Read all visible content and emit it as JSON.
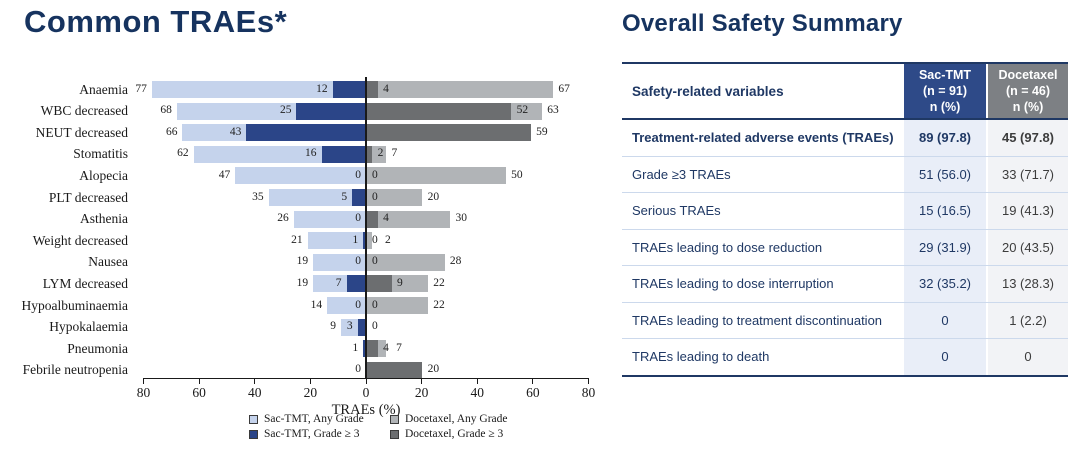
{
  "slide": {
    "left_title": "Common TRAEs*",
    "right_title": "Overall Safety Summary"
  },
  "colors": {
    "navy_text": "#16335f",
    "sac_any": "#c5d3ec",
    "sac_g3": "#2b4588",
    "doc_any": "#b1b4b7",
    "doc_g3": "#6c6e70",
    "axis": "#1a1a1a",
    "table_header_sac_bg": "#2e4a88",
    "table_header_doc_bg": "#7d8084",
    "sac_col_bg": "#e9eef8",
    "doc_col_bg": "#f2f3f6"
  },
  "chart_data": {
    "type": "bar",
    "subtype": "diverging-horizontal",
    "title": "Common TRAEs*",
    "xlabel": "TRAEs (%)",
    "x_ticks": [
      80,
      60,
      40,
      20,
      0,
      20,
      40,
      60,
      80
    ],
    "x_range_left": 80,
    "x_range_right": 80,
    "grid": false,
    "legend_position": "bottom",
    "legend": [
      {
        "name": "Sac-TMT, Any Grade",
        "color_key": "sac_any"
      },
      {
        "name": "Docetaxel, Any Grade",
        "color_key": "doc_any"
      },
      {
        "name": "Sac-TMT, Grade ≥ 3",
        "color_key": "sac_g3"
      },
      {
        "name": "Docetaxel, Grade ≥ 3",
        "color_key": "doc_g3"
      }
    ],
    "rows": [
      {
        "category": "Anaemia",
        "sac_any": 77,
        "sac_g3": 12,
        "doc_g3": 4,
        "doc_any": 67,
        "labels": {
          "sac_any": "77",
          "sac_g3": "12",
          "doc_g3": "4",
          "doc_any": "67"
        }
      },
      {
        "category": "WBC decreased",
        "sac_any": 68,
        "sac_g3": 25,
        "doc_g3": 52,
        "doc_any": 63,
        "labels": {
          "sac_any": "68",
          "sac_g3": "25",
          "doc_g3": "52",
          "doc_any": "63"
        }
      },
      {
        "category": "NEUT decreased",
        "sac_any": 66,
        "sac_g3": 43,
        "doc_g3": 59,
        "doc_any": 59,
        "labels": {
          "sac_any": "66",
          "sac_g3": "43",
          "doc_g3": null,
          "doc_any": "59"
        }
      },
      {
        "category": "Stomatitis",
        "sac_any": 62,
        "sac_g3": 16,
        "doc_g3": 2,
        "doc_any": 7,
        "labels": {
          "sac_any": "62",
          "sac_g3": "16",
          "doc_g3": "2",
          "doc_any": "7"
        }
      },
      {
        "category": "Alopecia",
        "sac_any": 47,
        "sac_g3": 0,
        "doc_g3": 0,
        "doc_any": 50,
        "labels": {
          "sac_any": "47",
          "sac_g3": "0",
          "doc_g3": "0",
          "doc_any": "50"
        }
      },
      {
        "category": "PLT decreased",
        "sac_any": 35,
        "sac_g3": 5,
        "doc_g3": 0,
        "doc_any": 20,
        "labels": {
          "sac_any": "35",
          "sac_g3": "5",
          "doc_g3": "0",
          "doc_any": "20"
        }
      },
      {
        "category": "Asthenia",
        "sac_any": 26,
        "sac_g3": 0,
        "doc_g3": 4,
        "doc_any": 30,
        "labels": {
          "sac_any": "26",
          "sac_g3": "0",
          "doc_g3": "4",
          "doc_any": "30"
        }
      },
      {
        "category": "Weight decreased",
        "sac_any": 21,
        "sac_g3": 1,
        "doc_g3": 0,
        "doc_any": 2,
        "labels": {
          "sac_any": "21",
          "sac_g3": "1",
          "doc_g3": "0",
          "doc_any": "2"
        }
      },
      {
        "category": "Nausea",
        "sac_any": 19,
        "sac_g3": 0,
        "doc_g3": 0,
        "doc_any": 28,
        "labels": {
          "sac_any": "19",
          "sac_g3": "0",
          "doc_g3": "0",
          "doc_any": "28"
        }
      },
      {
        "category": "LYM decreased",
        "sac_any": 19,
        "sac_g3": 7,
        "doc_g3": 9,
        "doc_any": 22,
        "labels": {
          "sac_any": "19",
          "sac_g3": "7",
          "doc_g3": "9",
          "doc_any": "22"
        }
      },
      {
        "category": "Hypoalbuminaemia",
        "sac_any": 14,
        "sac_g3": 0,
        "doc_g3": 0,
        "doc_any": 22,
        "labels": {
          "sac_any": "14",
          "sac_g3": "0",
          "doc_g3": "0",
          "doc_any": "22"
        }
      },
      {
        "category": "Hypokalaemia",
        "sac_any": 9,
        "sac_g3": 3,
        "doc_g3": 0,
        "doc_any": 0,
        "labels": {
          "sac_any": "9",
          "sac_g3": "3",
          "doc_g3": "0",
          "doc_any": null
        }
      },
      {
        "category": "Pneumonia",
        "sac_any": 1,
        "sac_g3": 1,
        "doc_g3": 4,
        "doc_any": 7,
        "labels": {
          "sac_any": null,
          "sac_g3": "1",
          "doc_g3": "4",
          "doc_any": "7"
        }
      },
      {
        "category": "Febrile neutropenia",
        "sac_any": 0,
        "sac_g3": 0,
        "doc_g3": 20,
        "doc_any": 20,
        "labels": {
          "sac_any": null,
          "sac_g3": "0",
          "doc_g3": null,
          "doc_any": "20"
        }
      }
    ]
  },
  "table": {
    "title": "Overall Safety Summary",
    "header": {
      "col1": "Safety-related variables",
      "col2": "Sac-TMT\n(n = 91)\nn (%)",
      "col3": "Docetaxel\n(n = 46)\nn (%)"
    },
    "rows": [
      {
        "variable": "Treatment-related adverse events (TRAEs)",
        "sac": "89 (97.8)",
        "doc": "45 (97.8)",
        "bold": true
      },
      {
        "variable": "Grade ≥3 TRAEs",
        "sac": "51 (56.0)",
        "doc": "33 (71.7)",
        "bold": false
      },
      {
        "variable": "Serious TRAEs",
        "sac": "15 (16.5)",
        "doc": "19 (41.3)",
        "bold": false
      },
      {
        "variable": "TRAEs leading to dose reduction",
        "sac": "29 (31.9)",
        "doc": "20 (43.5)",
        "bold": false
      },
      {
        "variable": "TRAEs leading to dose interruption",
        "sac": "32 (35.2)",
        "doc": "13 (28.3)",
        "bold": false
      },
      {
        "variable": "TRAEs leading to treatment discontinuation",
        "sac": "0",
        "doc": "1 (2.2)",
        "bold": false
      },
      {
        "variable": "TRAEs leading to death",
        "sac": "0",
        "doc": "0",
        "bold": false
      }
    ]
  }
}
